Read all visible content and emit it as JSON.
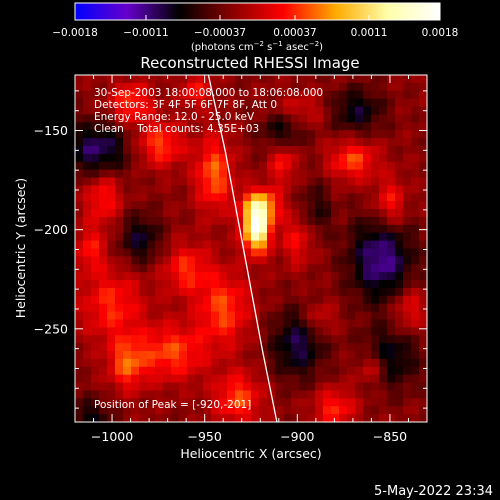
{
  "chart_data": {
    "type": "heatmap",
    "title": "Reconstructed RHESSI Image",
    "xlabel": "Heliocentric X (arcsec)",
    "ylabel": "Heliocentric Y (arcsec)",
    "xlim": [
      -1020,
      -830
    ],
    "ylim": [
      -297,
      -122
    ],
    "x_ticks": [
      {
        "value": -1000,
        "label": "−1000"
      },
      {
        "value": -950,
        "label": "−950"
      },
      {
        "value": -900,
        "label": "−900"
      },
      {
        "value": -850,
        "label": "−850"
      }
    ],
    "y_ticks": [
      {
        "value": -150,
        "label": "−150"
      },
      {
        "value": -200,
        "label": "−200"
      },
      {
        "value": -250,
        "label": "−250"
      }
    ],
    "colorbar": {
      "range": [
        -0.0018,
        0.0018
      ],
      "tick_values": [
        -0.0018,
        -0.0011,
        -0.00037,
        0.00037,
        0.0011,
        0.0018
      ],
      "tick_labels": [
        "−0.0018",
        "−0.0011",
        "−0.00037",
        "0.00037",
        "0.0011",
        "0.0018"
      ],
      "unit_parts": [
        {
          "t": "(photons cm",
          "sup": false
        },
        {
          "t": "−2",
          "sup": true
        },
        {
          "t": " s",
          "sup": false
        },
        {
          "t": "−1",
          "sup": true
        },
        {
          "t": " asec",
          "sup": false
        },
        {
          "t": "−2",
          "sup": true
        },
        {
          "t": ")",
          "sup": false
        }
      ],
      "colors": [
        "#0000ff",
        "#6600cc",
        "#000000",
        "#880000",
        "#ff0000",
        "#ffaa00",
        "#ffffaa",
        "#ffffff"
      ]
    },
    "annotations": [
      "30-Sep-2003 18:00:08.000 to 18:06:08.000",
      "Detectors: 3F 4F 5F 6F 7F 8F, Att 0",
      "Energy Range: 12.0 - 25.0 keV",
      "Clean    Total counts: 4.35E+03"
    ],
    "peak_label": "Position of Peak = [-920,-201]",
    "peak": {
      "x": -920,
      "y": -201
    },
    "limb_points": [
      [
        -948,
        -122
      ],
      [
        -939,
        -160
      ],
      [
        -929,
        -210
      ],
      [
        -919,
        -260
      ],
      [
        -911,
        -297
      ]
    ],
    "emission_sources": [
      {
        "x": -922,
        "y": -200,
        "value": 0.0018,
        "sx": 5,
        "sy": 8
      },
      {
        "x": -920,
        "y": -188,
        "value": 0.0011,
        "sx": 7,
        "sy": 6
      },
      {
        "x": -945,
        "y": -172,
        "value": 0.0008,
        "sx": 7,
        "sy": 13
      },
      {
        "x": -990,
        "y": -136,
        "value": 0.0007,
        "sx": 8,
        "sy": 7
      },
      {
        "x": -974,
        "y": -157,
        "value": 0.0007,
        "sx": 9,
        "sy": 8
      },
      {
        "x": -1005,
        "y": -183,
        "value": 0.0006,
        "sx": 7,
        "sy": 10
      },
      {
        "x": -1000,
        "y": -238,
        "value": 0.0006,
        "sx": 12,
        "sy": 13
      },
      {
        "x": -968,
        "y": -262,
        "value": 0.0007,
        "sx": 13,
        "sy": 10
      },
      {
        "x": -992,
        "y": -268,
        "value": 0.0007,
        "sx": 7,
        "sy": 9
      },
      {
        "x": -960,
        "y": -220,
        "value": 0.0006,
        "sx": 9,
        "sy": 9
      },
      {
        "x": -940,
        "y": -240,
        "value": 0.0007,
        "sx": 10,
        "sy": 13
      },
      {
        "x": -932,
        "y": -285,
        "value": 0.0007,
        "sx": 9,
        "sy": 9
      },
      {
        "x": -880,
        "y": -290,
        "value": 0.0006,
        "sx": 8,
        "sy": 7
      },
      {
        "x": -870,
        "y": -165,
        "value": 0.0007,
        "sx": 9,
        "sy": 7
      },
      {
        "x": -850,
        "y": -187,
        "value": 0.0006,
        "sx": 6,
        "sy": 9
      },
      {
        "x": -900,
        "y": -205,
        "value": 0.0005,
        "sx": 6,
        "sy": 9
      },
      {
        "x": -888,
        "y": -245,
        "value": 0.0004,
        "sx": 6,
        "sy": 6
      },
      {
        "x": -900,
        "y": -140,
        "value": 0.0004,
        "sx": 10,
        "sy": 6
      },
      {
        "x": -908,
        "y": -165,
        "value": 0.0006,
        "sx": 5,
        "sy": 8
      },
      {
        "x": -840,
        "y": -240,
        "value": 0.0005,
        "sx": 6,
        "sy": 8
      },
      {
        "x": -955,
        "y": -130,
        "value": 0.0005,
        "sx": 6,
        "sy": 6
      },
      {
        "x": -1012,
        "y": -210,
        "value": 0.0005,
        "sx": 6,
        "sy": 8
      },
      {
        "x": -860,
        "y": -270,
        "value": 0.0005,
        "sx": 6,
        "sy": 6
      },
      {
        "x": -1008,
        "y": -160,
        "value": -0.0008,
        "sx": 12,
        "sy": 10
      },
      {
        "x": -868,
        "y": -140,
        "value": -0.0006,
        "sx": 10,
        "sy": 8
      },
      {
        "x": -855,
        "y": -215,
        "value": -0.0009,
        "sx": 12,
        "sy": 15
      },
      {
        "x": -850,
        "y": -265,
        "value": -0.0006,
        "sx": 11,
        "sy": 11
      },
      {
        "x": -900,
        "y": -258,
        "value": -0.0007,
        "sx": 10,
        "sy": 12
      },
      {
        "x": -908,
        "y": -150,
        "value": -0.0006,
        "sx": 8,
        "sy": 8
      },
      {
        "x": -1012,
        "y": -295,
        "value": -0.0005,
        "sx": 8,
        "sy": 7
      },
      {
        "x": -985,
        "y": -205,
        "value": -0.0006,
        "sx": 8,
        "sy": 9
      },
      {
        "x": -890,
        "y": -190,
        "value": -0.0004,
        "sx": 6,
        "sy": 10
      }
    ]
  },
  "footer": {
    "datetime": "5-May-2022 23:34"
  }
}
